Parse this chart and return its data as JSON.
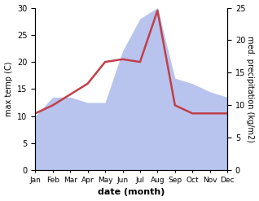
{
  "months": [
    "Jan",
    "Feb",
    "Mar",
    "Apr",
    "May",
    "Jun",
    "Jul",
    "Aug",
    "Sep",
    "Oct",
    "Nov",
    "Dec"
  ],
  "temp": [
    10.5,
    12.0,
    14.0,
    16.0,
    20.0,
    20.5,
    20.0,
    29.5,
    12.0,
    10.5,
    10.5,
    10.5
  ],
  "precip": [
    10.0,
    13.5,
    13.5,
    12.5,
    12.5,
    22.0,
    28.0,
    30.0,
    17.0,
    16.0,
    14.5,
    13.5
  ],
  "temp_color": "#c0404a",
  "precip_color": "#b8c4ee",
  "temp_ylim": [
    0,
    30
  ],
  "precip_ylim": [
    0,
    30
  ],
  "right_ylim": [
    0,
    25
  ],
  "left_yticks": [
    0,
    5,
    10,
    15,
    20,
    25,
    30
  ],
  "right_yticks": [
    0,
    5,
    10,
    15,
    20,
    25
  ],
  "right_yticklabels": [
    "0",
    "5",
    "10",
    "15",
    "20",
    "25"
  ],
  "xlabel": "date (month)",
  "ylabel_left": "max temp (C)",
  "ylabel_right": "med. precipitation (kg/m2)",
  "bg_color": "#ffffff"
}
